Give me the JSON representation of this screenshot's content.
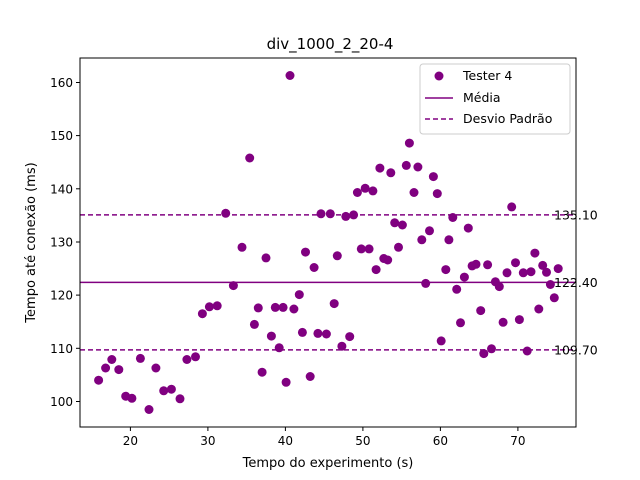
{
  "chart_data": {
    "type": "scatter",
    "title": "div_1000_2_20-4",
    "xlabel": "Tempo do experimento (s)",
    "ylabel": "Tempo até conexão (ms)",
    "xlim": [
      13.5,
      77.5
    ],
    "ylim": [
      95.2,
      164.6
    ],
    "xticks": [
      20,
      30,
      40,
      50,
      60,
      70
    ],
    "yticks": [
      100,
      110,
      120,
      130,
      140,
      150,
      160
    ],
    "grid": false,
    "legend_position": "top-right",
    "colors": {
      "series": "#800080"
    },
    "series": [
      {
        "name": "Tester 4",
        "points": [
          [
            15.9,
            104.0
          ],
          [
            16.8,
            106.3
          ],
          [
            17.6,
            107.9
          ],
          [
            18.5,
            106.0
          ],
          [
            19.4,
            101.0
          ],
          [
            20.2,
            100.6
          ],
          [
            21.3,
            108.1
          ],
          [
            22.4,
            98.5
          ],
          [
            23.3,
            106.3
          ],
          [
            24.3,
            102.0
          ],
          [
            25.3,
            102.3
          ],
          [
            26.4,
            100.5
          ],
          [
            27.3,
            107.9
          ],
          [
            28.4,
            108.4
          ],
          [
            29.3,
            116.5
          ],
          [
            30.2,
            117.8
          ],
          [
            31.2,
            118.0
          ],
          [
            32.3,
            135.4
          ],
          [
            33.3,
            121.8
          ],
          [
            34.4,
            129.0
          ],
          [
            35.4,
            145.8
          ],
          [
            36.0,
            114.5
          ],
          [
            36.5,
            117.6
          ],
          [
            37.0,
            105.5
          ],
          [
            37.5,
            127.0
          ],
          [
            38.2,
            112.3
          ],
          [
            38.7,
            117.7
          ],
          [
            39.2,
            110.1
          ],
          [
            39.7,
            117.7
          ],
          [
            40.1,
            103.6
          ],
          [
            40.6,
            161.3
          ],
          [
            41.1,
            117.4
          ],
          [
            41.8,
            120.1
          ],
          [
            42.2,
            113.0
          ],
          [
            42.6,
            128.1
          ],
          [
            43.2,
            104.7
          ],
          [
            43.7,
            125.2
          ],
          [
            44.2,
            112.8
          ],
          [
            44.6,
            135.3
          ],
          [
            45.3,
            112.7
          ],
          [
            45.8,
            135.3
          ],
          [
            46.3,
            118.4
          ],
          [
            46.7,
            127.4
          ],
          [
            47.3,
            110.4
          ],
          [
            47.8,
            134.8
          ],
          [
            48.3,
            112.2
          ],
          [
            48.8,
            135.1
          ],
          [
            49.3,
            139.3
          ],
          [
            49.8,
            128.7
          ],
          [
            50.3,
            140.1
          ],
          [
            50.8,
            128.7
          ],
          [
            51.3,
            139.6
          ],
          [
            51.7,
            124.8
          ],
          [
            52.2,
            143.9
          ],
          [
            52.7,
            126.9
          ],
          [
            53.2,
            126.6
          ],
          [
            53.6,
            143.0
          ],
          [
            54.1,
            133.6
          ],
          [
            54.6,
            129.0
          ],
          [
            55.1,
            133.2
          ],
          [
            55.6,
            144.4
          ],
          [
            56.0,
            148.6
          ],
          [
            56.6,
            139.3
          ],
          [
            57.1,
            144.1
          ],
          [
            57.6,
            130.4
          ],
          [
            58.1,
            122.2
          ],
          [
            58.6,
            132.1
          ],
          [
            59.1,
            142.3
          ],
          [
            59.6,
            139.1
          ],
          [
            60.1,
            111.4
          ],
          [
            60.7,
            124.8
          ],
          [
            61.1,
            130.4
          ],
          [
            61.6,
            134.6
          ],
          [
            62.1,
            121.1
          ],
          [
            62.6,
            114.8
          ],
          [
            63.1,
            123.4
          ],
          [
            63.6,
            132.6
          ],
          [
            64.1,
            125.5
          ],
          [
            64.6,
            125.8
          ],
          [
            65.2,
            117.1
          ],
          [
            65.6,
            109.0
          ],
          [
            66.1,
            125.7
          ],
          [
            66.6,
            109.9
          ],
          [
            67.1,
            122.5
          ],
          [
            67.6,
            121.6
          ],
          [
            68.1,
            114.9
          ],
          [
            68.6,
            124.2
          ],
          [
            69.2,
            136.6
          ],
          [
            69.7,
            126.1
          ],
          [
            70.2,
            115.4
          ],
          [
            70.7,
            124.2
          ],
          [
            71.2,
            109.5
          ],
          [
            71.7,
            124.4
          ],
          [
            72.2,
            127.9
          ],
          [
            72.7,
            117.4
          ],
          [
            73.2,
            125.6
          ],
          [
            73.7,
            124.3
          ],
          [
            74.2,
            122.0
          ],
          [
            74.7,
            119.5
          ],
          [
            75.2,
            125.0
          ]
        ]
      }
    ],
    "reference_lines": [
      {
        "name": "Média",
        "value": 122.4,
        "label": "122.40",
        "style": "solid"
      },
      {
        "name": "Desvio Padrão",
        "value": 135.1,
        "label": "135.10",
        "style": "dashed"
      },
      {
        "value": 109.7,
        "label": "109.70",
        "style": "dashed"
      }
    ]
  }
}
